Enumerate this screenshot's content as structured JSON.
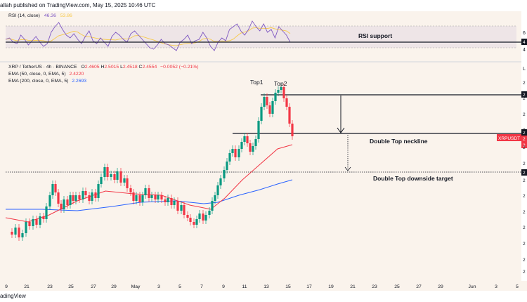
{
  "header": {
    "publisher_text": "allah published on TradingView.com, May 15, 2025 10:46 UTC"
  },
  "footer": {
    "brand_text": "adingView"
  },
  "rsi_pane": {
    "label": "RSI (14, close)",
    "value_1": "46.36",
    "value_2": "53.86",
    "annotation": "RSI support",
    "axis_ticks": [
      "6",
      "4",
      "4"
    ]
  },
  "main_pane": {
    "symbol_line": {
      "symbol": "XRP / TetherUS · 4h · BINANCE",
      "o_label": "O",
      "o_value": "2.4605",
      "h_label": "H",
      "h_value": "2.5015",
      "l_label": "L",
      "l_value": "2.4518",
      "c_label": "C",
      "c_value": "2.4554",
      "change": "−0.0052 (−0.21%)"
    },
    "ema50": {
      "label": "EMA (50, close, 0, EMA, 5)",
      "value": "2.4220",
      "color": "#f23645"
    },
    "ema200": {
      "label": "EMA (200, close, 0, EMA, 5)",
      "value": "2.2693",
      "color": "#2962ff"
    },
    "annotations": {
      "top1": "Top1",
      "top2": "Top2",
      "neckline": "Double Top neckline",
      "target": "Double Top downside target"
    },
    "symbol_badge": "XRPUSDT",
    "price_axis_fragments": [
      "2",
      "2",
      "2",
      "2",
      "2",
      "2",
      "2",
      "2",
      "2",
      "2",
      "2",
      "2",
      "2",
      "1",
      "1"
    ],
    "right_tags": [
      "2",
      "2",
      "2",
      "2",
      "2",
      "2"
    ],
    "lower_right_text": "L"
  },
  "time_axis": {
    "labels": [
      "9",
      "21",
      "23",
      "25",
      "27",
      "29",
      "May",
      "3",
      "5",
      "7",
      "9",
      "11",
      "13",
      "15",
      "17",
      "19",
      "21",
      "23",
      "25",
      "27",
      "29",
      "Jun",
      "3",
      "5"
    ]
  },
  "colors": {
    "up": "#089981",
    "down": "#f23645",
    "rsi_line": "#7e57c2",
    "rsi_ma": "#f7c948",
    "rsi_band": "#7e57c2",
    "background": "#faf3ec"
  }
}
